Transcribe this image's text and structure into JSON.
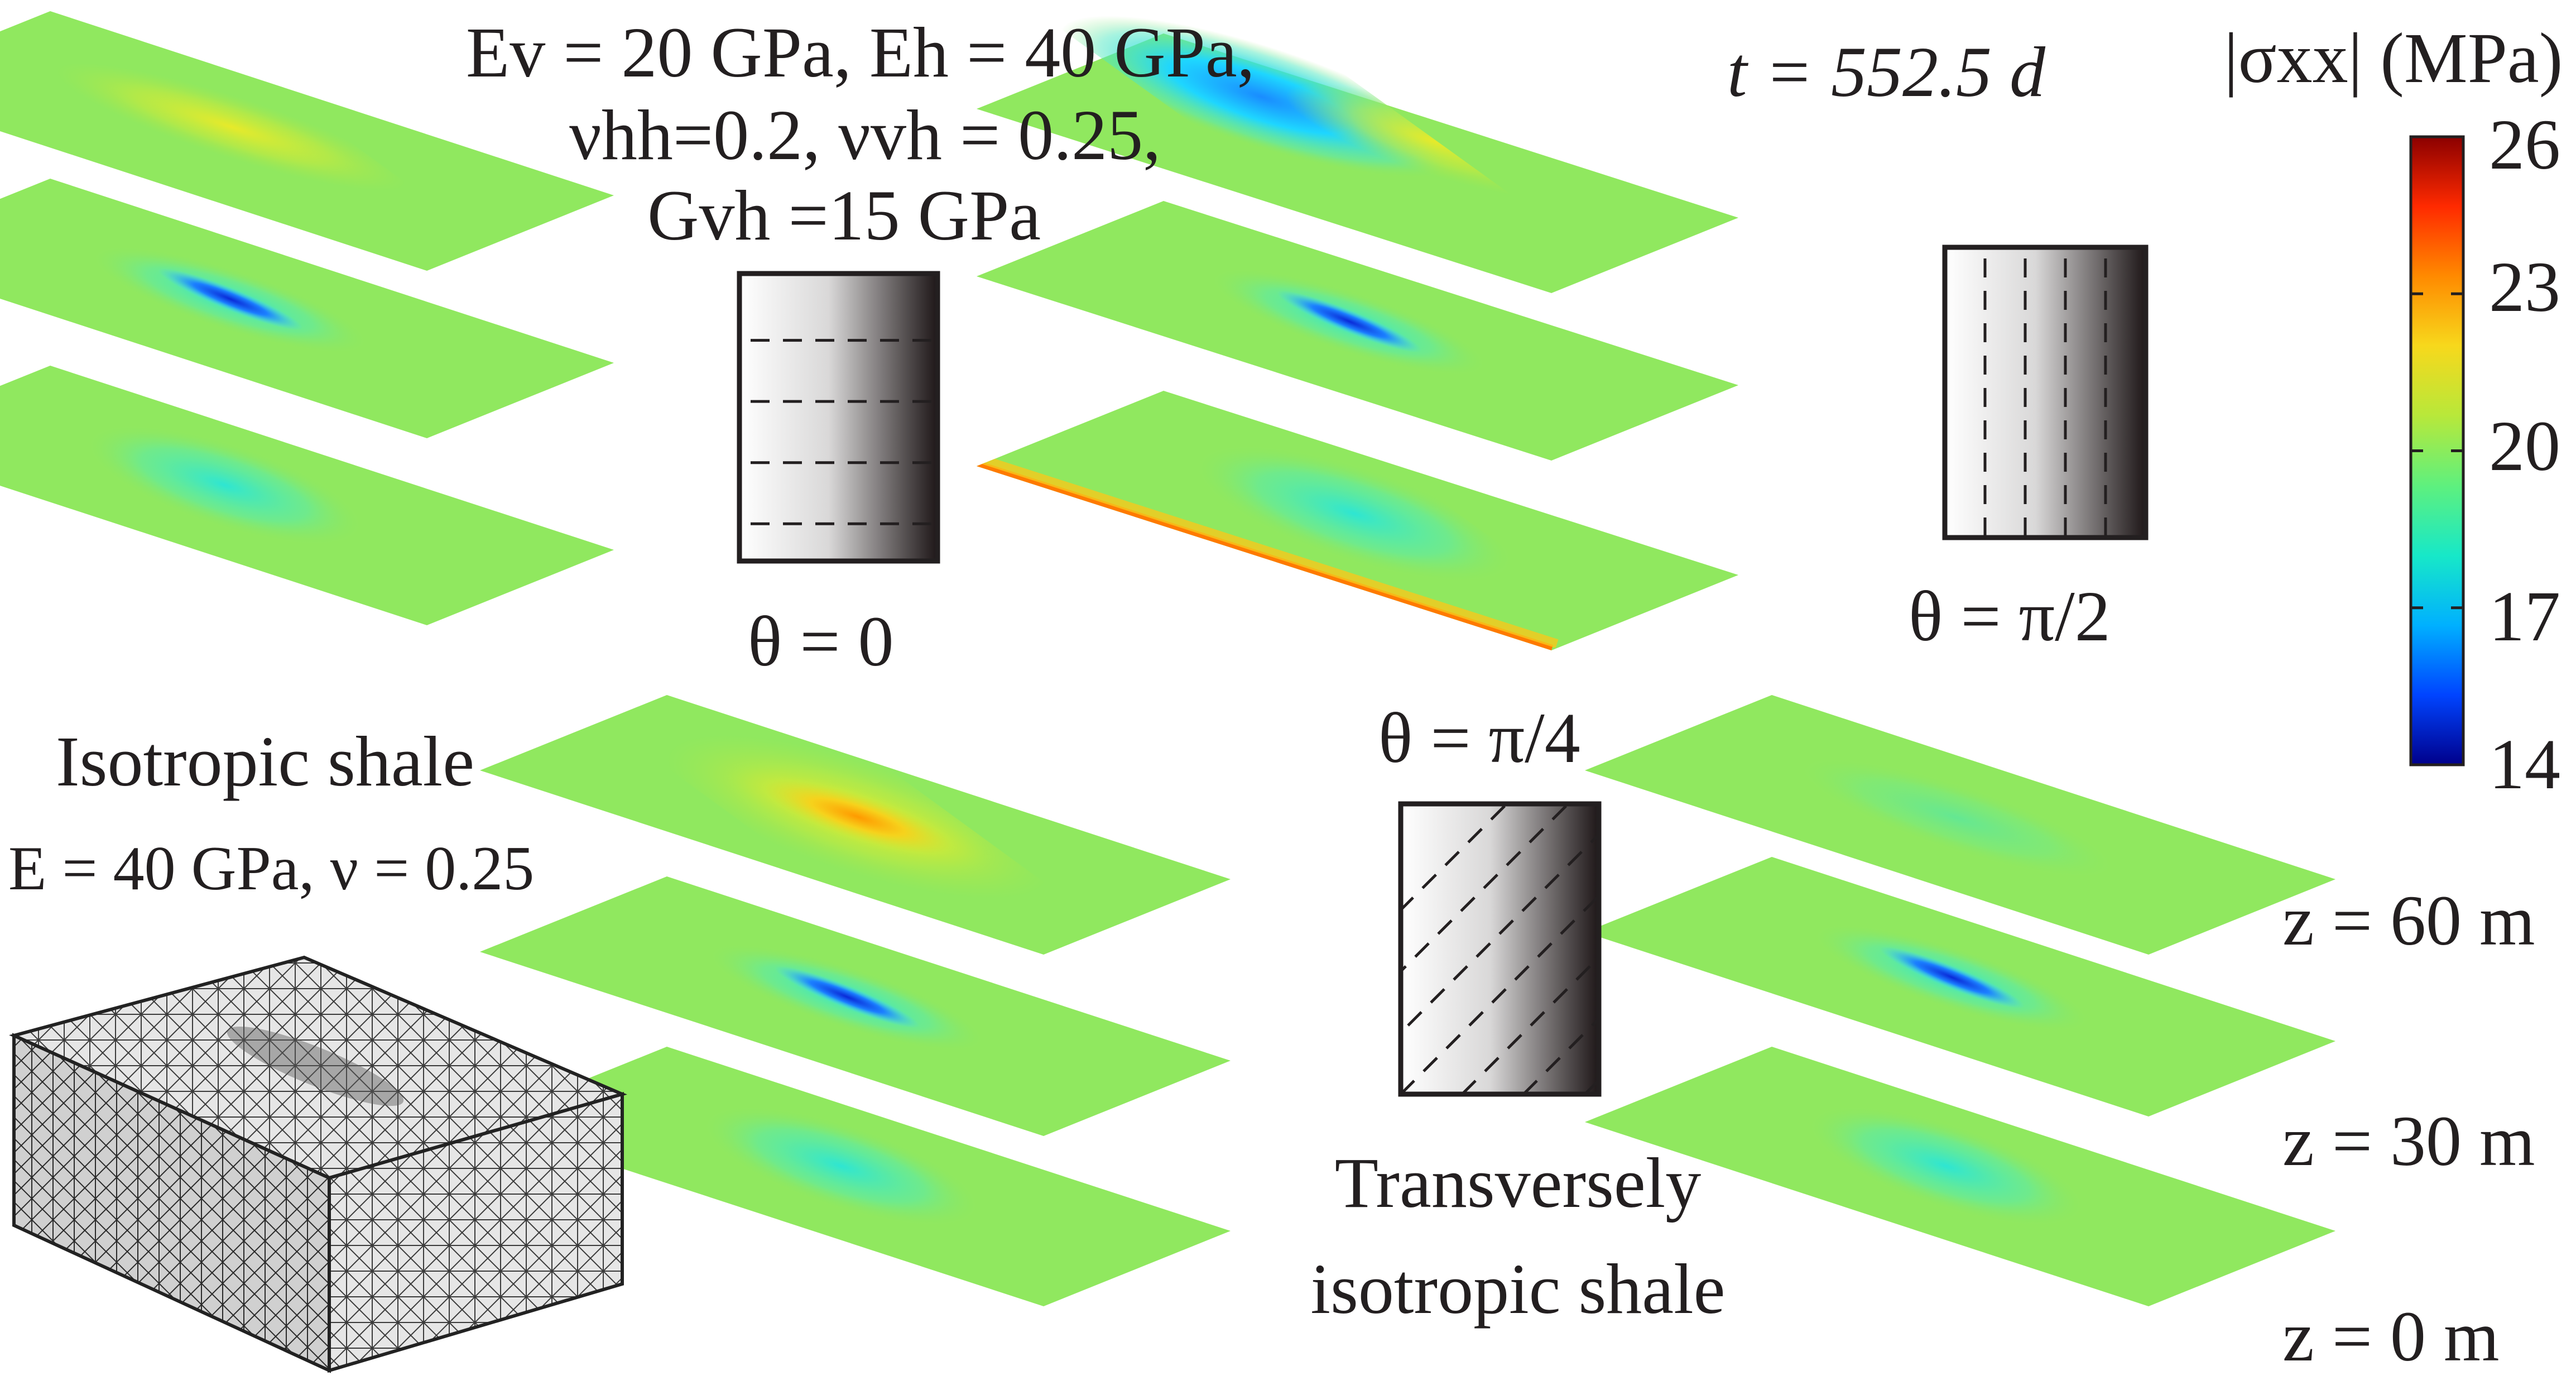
{
  "time_label": "t = 552.5 d",
  "colorbar": {
    "title": "|σxx| (MPa)",
    "ticks": [
      "26",
      "23",
      "20",
      "17",
      "14"
    ],
    "min": 14,
    "max": 26,
    "colors": [
      "#00008b",
      "#0044ff",
      "#00b0ff",
      "#17e8c8",
      "#5ef07e",
      "#b8e83a",
      "#f7d81c",
      "#ff8a00",
      "#ff2a00",
      "#8b0000"
    ]
  },
  "isotropic": {
    "title": "Isotropic shale",
    "params": "E = 40 GPa, ν = 0.25"
  },
  "transverse": {
    "params_line1": "Ev = 20 GPa, Eh = 40 GPa,",
    "params_line2": "νhh=0.2, νvh = 0.25,",
    "params_line3": "Gvh =15 GPa",
    "title_line1": "Transversely",
    "title_line2": "isotropic shale"
  },
  "orientations": [
    {
      "label": "θ = 0",
      "angle_deg": 0
    },
    {
      "label": "θ = π/4",
      "angle_deg": 45
    },
    {
      "label": "θ = π/2",
      "angle_deg": 90
    }
  ],
  "depth_labels": [
    "z = 60 m",
    "z = 30 m",
    "z = 0 m"
  ],
  "slice_hotspots": {
    "isotropic": [
      "yellow-band",
      "blue-fracture",
      "faint-blue"
    ],
    "theta_0": [
      "orange-ellipse",
      "blue-fracture",
      "faint-blue"
    ],
    "theta_pi4": [
      "blue-diagonal",
      "blue-fracture",
      "orange-edge"
    ],
    "theta_pi2": [
      "faint-green",
      "blue-fracture",
      "faint-blue"
    ]
  }
}
